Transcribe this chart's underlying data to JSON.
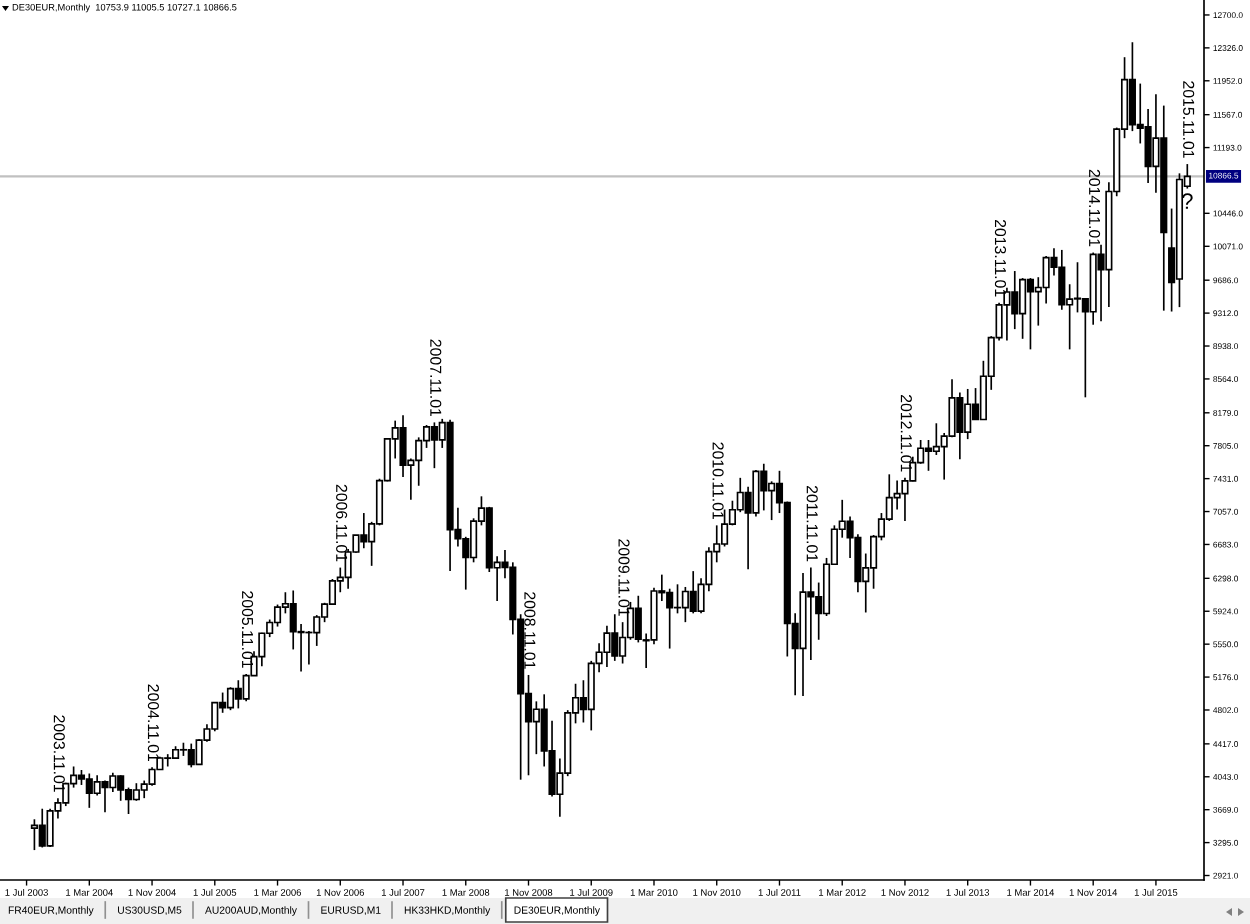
{
  "chart_data": {
    "type": "candlestick",
    "title": "DE30EUR,Monthly  10753.9 11005.5 10727.1 10866.5",
    "x": [
      "2003-08",
      "2003-09",
      "2003-10",
      "2003-11",
      "2003-12",
      "2004-01",
      "2004-02",
      "2004-03",
      "2004-04",
      "2004-05",
      "2004-06",
      "2004-07",
      "2004-08",
      "2004-09",
      "2004-10",
      "2004-11",
      "2004-12",
      "2005-01",
      "2005-02",
      "2005-03",
      "2005-04",
      "2005-05",
      "2005-06",
      "2005-07",
      "2005-08",
      "2005-09",
      "2005-10",
      "2005-11",
      "2005-12",
      "2006-01",
      "2006-02",
      "2006-03",
      "2006-04",
      "2006-05",
      "2006-06",
      "2006-07",
      "2006-08",
      "2006-09",
      "2006-10",
      "2006-11",
      "2006-12",
      "2007-01",
      "2007-02",
      "2007-03",
      "2007-04",
      "2007-05",
      "2007-06",
      "2007-07",
      "2007-08",
      "2007-09",
      "2007-10",
      "2007-11",
      "2007-12",
      "2008-01",
      "2008-02",
      "2008-03",
      "2008-04",
      "2008-05",
      "2008-06",
      "2008-07",
      "2008-08",
      "2008-09",
      "2008-10",
      "2008-11",
      "2008-12",
      "2009-01",
      "2009-02",
      "2009-03",
      "2009-04",
      "2009-05",
      "2009-06",
      "2009-07",
      "2009-08",
      "2009-09",
      "2009-10",
      "2009-11",
      "2009-12",
      "2010-01",
      "2010-02",
      "2010-03",
      "2010-04",
      "2010-05",
      "2010-06",
      "2010-07",
      "2010-08",
      "2010-09",
      "2010-10",
      "2010-11",
      "2010-12",
      "2011-01",
      "2011-02",
      "2011-03",
      "2011-04",
      "2011-05",
      "2011-06",
      "2011-07",
      "2011-08",
      "2011-09",
      "2011-10",
      "2011-11",
      "2011-12",
      "2012-01",
      "2012-02",
      "2012-03",
      "2012-04",
      "2012-05",
      "2012-06",
      "2012-07",
      "2012-08",
      "2012-09",
      "2012-10",
      "2012-11",
      "2012-12",
      "2013-01",
      "2013-02",
      "2013-03",
      "2013-04",
      "2013-05",
      "2013-06",
      "2013-07",
      "2013-08",
      "2013-09",
      "2013-10",
      "2013-11",
      "2013-12",
      "2014-01",
      "2014-02",
      "2014-03",
      "2014-04",
      "2014-05",
      "2014-06",
      "2014-07",
      "2014-08",
      "2014-09",
      "2014-10",
      "2014-11",
      "2014-12",
      "2015-01",
      "2015-02",
      "2015-03",
      "2015-04",
      "2015-05",
      "2015-06",
      "2015-07",
      "2015-08",
      "2015-09",
      "2015-10",
      "2015-11"
    ],
    "ohlc": [
      [
        3460,
        3560,
        3210,
        3490
      ],
      [
        3490,
        3680,
        3240,
        3257
      ],
      [
        3257,
        3680,
        3244,
        3655
      ],
      [
        3655,
        3800,
        3570,
        3746
      ],
      [
        3746,
        3975,
        3710,
        3965
      ],
      [
        3965,
        4160,
        3920,
        4058
      ],
      [
        4058,
        4120,
        3950,
        4018
      ],
      [
        4018,
        4080,
        3690,
        3856
      ],
      [
        3856,
        4060,
        3830,
        3985
      ],
      [
        3985,
        4000,
        3640,
        3921
      ],
      [
        3921,
        4090,
        3870,
        4052
      ],
      [
        4052,
        4060,
        3770,
        3895
      ],
      [
        3895,
        3920,
        3620,
        3785
      ],
      [
        3785,
        3970,
        3770,
        3893
      ],
      [
        3893,
        4000,
        3800,
        3960
      ],
      [
        3960,
        4150,
        3940,
        4126
      ],
      [
        4126,
        4270,
        4120,
        4256
      ],
      [
        4256,
        4300,
        4160,
        4254
      ],
      [
        4254,
        4390,
        4245,
        4350
      ],
      [
        4350,
        4430,
        4280,
        4349
      ],
      [
        4349,
        4420,
        4150,
        4184
      ],
      [
        4184,
        4470,
        4180,
        4460
      ],
      [
        4460,
        4640,
        4440,
        4586
      ],
      [
        4586,
        4890,
        4560,
        4886
      ],
      [
        4886,
        5000,
        4770,
        4829
      ],
      [
        4829,
        5060,
        4800,
        5044
      ],
      [
        5044,
        5140,
        4820,
        4929
      ],
      [
        4929,
        5210,
        4900,
        5193
      ],
      [
        5193,
        5470,
        5190,
        5408
      ],
      [
        5408,
        5680,
        5300,
        5674
      ],
      [
        5674,
        5830,
        5630,
        5796
      ],
      [
        5796,
        6000,
        5750,
        5970
      ],
      [
        5970,
        6140,
        5900,
        6009
      ],
      [
        6009,
        6160,
        5490,
        5692
      ],
      [
        5692,
        5780,
        5240,
        5683
      ],
      [
        5683,
        5700,
        5320,
        5682
      ],
      [
        5682,
        5880,
        5530,
        5859
      ],
      [
        5859,
        6020,
        5800,
        6004
      ],
      [
        6004,
        6290,
        6000,
        6269
      ],
      [
        6269,
        6420,
        6140,
        6309
      ],
      [
        6309,
        6630,
        6180,
        6597
      ],
      [
        6597,
        6790,
        6590,
        6789
      ],
      [
        6789,
        7040,
        6640,
        6716
      ],
      [
        6716,
        6940,
        6440,
        6917
      ],
      [
        6917,
        7430,
        6900,
        7409
      ],
      [
        7409,
        7890,
        7400,
        7883
      ],
      [
        7883,
        8090,
        7660,
        8007
      ],
      [
        8007,
        8150,
        7450,
        7584
      ],
      [
        7584,
        7660,
        7190,
        7638
      ],
      [
        7638,
        7900,
        7350,
        7862
      ],
      [
        7862,
        8040,
        7780,
        8019
      ],
      [
        8019,
        8070,
        7550,
        7871
      ],
      [
        7871,
        8110,
        7780,
        8067
      ],
      [
        8067,
        8100,
        6380,
        6851
      ],
      [
        6851,
        7100,
        6660,
        6748
      ],
      [
        6748,
        6770,
        6170,
        6535
      ],
      [
        6535,
        6980,
        6480,
        6949
      ],
      [
        6949,
        7230,
        6900,
        7096
      ],
      [
        7096,
        7110,
        6370,
        6418
      ],
      [
        6418,
        6550,
        6040,
        6479
      ],
      [
        6479,
        6620,
        6300,
        6422
      ],
      [
        6422,
        6480,
        5660,
        5831
      ],
      [
        5831,
        5890,
        4010,
        4988
      ],
      [
        4988,
        5200,
        4060,
        4669
      ],
      [
        4669,
        4900,
        4300,
        4810
      ],
      [
        4810,
        4980,
        4160,
        4338
      ],
      [
        4338,
        4680,
        3820,
        3844
      ],
      [
        3844,
        4250,
        3590,
        4085
      ],
      [
        4085,
        4800,
        4050,
        4770
      ],
      [
        4770,
        5100,
        4650,
        4941
      ],
      [
        4941,
        5140,
        4660,
        4809
      ],
      [
        4809,
        5360,
        4570,
        5332
      ],
      [
        5332,
        5560,
        5230,
        5458
      ],
      [
        5458,
        5760,
        5290,
        5675
      ],
      [
        5675,
        5890,
        5360,
        5415
      ],
      [
        5415,
        5800,
        5330,
        5626
      ],
      [
        5626,
        6030,
        5600,
        5957
      ],
      [
        5957,
        6100,
        5570,
        5608
      ],
      [
        5590,
        5670,
        5280,
        5598
      ],
      [
        5598,
        6190,
        5550,
        6154
      ],
      [
        6154,
        6340,
        6040,
        6136
      ],
      [
        6136,
        6180,
        5500,
        5965
      ],
      [
        5965,
        6230,
        5900,
        5966
      ],
      [
        5966,
        6200,
        5800,
        6148
      ],
      [
        6148,
        6380,
        5900,
        5925
      ],
      [
        5925,
        6300,
        5900,
        6229
      ],
      [
        6229,
        6650,
        6150,
        6601
      ],
      [
        6601,
        6900,
        6480,
        6688
      ],
      [
        6688,
        7080,
        6660,
        6914
      ],
      [
        6914,
        7180,
        6900,
        7077
      ],
      [
        7077,
        7440,
        7050,
        7273
      ],
      [
        7273,
        7340,
        6400,
        7041
      ],
      [
        7041,
        7530,
        7000,
        7514
      ],
      [
        7514,
        7600,
        7070,
        7294
      ],
      [
        7294,
        7400,
        6960,
        7376
      ],
      [
        7376,
        7520,
        7040,
        7159
      ],
      [
        7159,
        7170,
        5410,
        5785
      ],
      [
        5785,
        5900,
        4970,
        5502
      ],
      [
        5502,
        6360,
        4960,
        6141
      ],
      [
        6141,
        6420,
        5370,
        6089
      ],
      [
        6089,
        6250,
        5600,
        5898
      ],
      [
        5898,
        6530,
        5870,
        6458
      ],
      [
        6458,
        6900,
        6450,
        6856
      ],
      [
        6856,
        7190,
        6760,
        6947
      ],
      [
        6947,
        7000,
        6530,
        6761
      ],
      [
        6761,
        6800,
        6140,
        6264
      ],
      [
        6264,
        6580,
        5910,
        6416
      ],
      [
        6416,
        6790,
        6180,
        6772
      ],
      [
        6772,
        7040,
        6730,
        6971
      ],
      [
        6971,
        7480,
        6950,
        7216
      ],
      [
        7216,
        7410,
        7080,
        7260
      ],
      [
        7260,
        7440,
        6950,
        7405
      ],
      [
        7405,
        7680,
        7400,
        7612
      ],
      [
        7612,
        7870,
        7600,
        7776
      ],
      [
        7776,
        7870,
        7520,
        7742
      ],
      [
        7742,
        8060,
        7700,
        7795
      ],
      [
        7795,
        7950,
        7420,
        7914
      ],
      [
        7914,
        8560,
        7900,
        8349
      ],
      [
        8349,
        8410,
        7650,
        7959
      ],
      [
        7959,
        8450,
        7880,
        8276
      ],
      [
        8276,
        8460,
        8100,
        8103
      ],
      [
        8103,
        8770,
        8100,
        8594
      ],
      [
        8594,
        9050,
        8440,
        9033
      ],
      [
        9033,
        9430,
        9000,
        9406
      ],
      [
        9406,
        9600,
        9000,
        9552
      ],
      [
        9552,
        9790,
        9130,
        9306
      ],
      [
        9306,
        9710,
        9020,
        9692
      ],
      [
        9692,
        9710,
        8900,
        9556
      ],
      [
        9556,
        9720,
        9170,
        9603
      ],
      [
        9603,
        9960,
        9420,
        9943
      ],
      [
        9943,
        10050,
        9740,
        9833
      ],
      [
        9833,
        10030,
        9350,
        9407
      ],
      [
        9407,
        9640,
        8900,
        9470
      ],
      [
        9480,
        9890,
        9320,
        9474
      ],
      [
        9474,
        9480,
        8355,
        9327
      ],
      [
        9327,
        10000,
        9180,
        9980
      ],
      [
        9980,
        10090,
        9220,
        9806
      ],
      [
        9806,
        10800,
        9380,
        10694
      ],
      [
        10694,
        11420,
        10640,
        11402
      ],
      [
        11402,
        12220,
        11300,
        11966
      ],
      [
        11966,
        12390,
        11380,
        11454
      ],
      [
        11454,
        11920,
        11240,
        11414
      ],
      [
        11430,
        11630,
        10790,
        10980
      ],
      [
        10980,
        11800,
        10680,
        11300
      ],
      [
        11300,
        11670,
        9340,
        10230
      ],
      [
        10050,
        10500,
        9330,
        9660
      ],
      [
        9700,
        10900,
        9380,
        10830
      ],
      [
        10753.9,
        11005.5,
        10727.1,
        10866.5
      ]
    ],
    "color": "#000000",
    "colors": [
      "#ffffff",
      "#000000",
      "#ffffff",
      "#ffffff",
      "#ffffff",
      "#ffffff",
      "#000000",
      "#000000",
      "#ffffff",
      "#000000",
      "#ffffff",
      "#000000",
      "#000000",
      "#ffffff",
      "#ffffff",
      "#ffffff",
      "#ffffff",
      "#000000",
      "#ffffff",
      "#000000",
      "#000000",
      "#ffffff",
      "#ffffff",
      "#ffffff",
      "#000000",
      "#ffffff",
      "#000000",
      "#ffffff",
      "#ffffff",
      "#ffffff",
      "#ffffff",
      "#ffffff",
      "#ffffff",
      "#000000",
      "#000000",
      "#000000",
      "#ffffff",
      "#ffffff",
      "#ffffff",
      "#ffffff",
      "#ffffff",
      "#ffffff",
      "#000000",
      "#ffffff",
      "#ffffff",
      "#ffffff",
      "#ffffff",
      "#000000",
      "#ffffff",
      "#ffffff",
      "#ffffff",
      "#000000",
      "#ffffff",
      "#000000",
      "#000000",
      "#000000",
      "#ffffff",
      "#ffffff",
      "#000000",
      "#ffffff",
      "#000000",
      "#000000",
      "#000000",
      "#000000",
      "#ffffff",
      "#000000",
      "#000000",
      "#ffffff",
      "#ffffff",
      "#ffffff",
      "#000000",
      "#ffffff",
      "#ffffff",
      "#ffffff",
      "#000000",
      "#ffffff",
      "#ffffff",
      "#000000",
      "#ffffff",
      "#ffffff",
      "#000000",
      "#000000",
      "#ffffff",
      "#ffffff",
      "#000000",
      "#ffffff",
      "#ffffff",
      "#ffffff",
      "#ffffff",
      "#ffffff",
      "#ffffff",
      "#000000",
      "#ffffff",
      "#000000",
      "#ffffff",
      "#000000",
      "#000000",
      "#000000",
      "#ffffff",
      "#000000",
      "#000000",
      "#ffffff",
      "#ffffff",
      "#ffffff",
      "#000000",
      "#000000",
      "#ffffff",
      "#ffffff",
      "#ffffff",
      "#ffffff",
      "#ffffff",
      "#ffffff",
      "#ffffff",
      "#ffffff",
      "#000000",
      "#ffffff",
      "#ffffff",
      "#ffffff",
      "#000000",
      "#ffffff",
      "#000000",
      "#ffffff",
      "#ffffff",
      "#ffffff",
      "#ffffff",
      "#000000",
      "#ffffff",
      "#000000",
      "#ffffff",
      "#ffffff",
      "#000000",
      "#000000",
      "#ffffff",
      "#000000",
      "#000000",
      "#ffffff",
      "#000000",
      "#ffffff",
      "#ffffff",
      "#ffffff",
      "#000000",
      "#000000",
      "#000000",
      "#ffffff",
      "#000000",
      "#000000",
      "#ffffff",
      "#ffffff"
    ],
    "xlim": [
      "2003-03-20",
      "2016-01-05"
    ],
    "xticks": [
      {
        "value": "2003-07",
        "label": "1 Jul 2003"
      },
      {
        "value": "2004-03",
        "label": "1 Mar 2004"
      },
      {
        "value": "2004-11",
        "label": "1 Nov 2004"
      },
      {
        "value": "2005-07",
        "label": "1 Jul 2005"
      },
      {
        "value": "2006-03",
        "label": "1 Mar 2006"
      },
      {
        "value": "2006-11",
        "label": "1 Nov 2006"
      },
      {
        "value": "2007-07",
        "label": "1 Jul 2007"
      },
      {
        "value": "2008-03",
        "label": "1 Mar 2008"
      },
      {
        "value": "2008-11",
        "label": "1 Nov 2008"
      },
      {
        "value": "2009-07",
        "label": "1 Jul 2009"
      },
      {
        "value": "2010-03",
        "label": "1 Mar 2010"
      },
      {
        "value": "2010-11",
        "label": "1 Nov 2010"
      },
      {
        "value": "2011-07",
        "label": "1 Jul 2011"
      },
      {
        "value": "2012-03",
        "label": "1 Mar 2012"
      },
      {
        "value": "2012-11",
        "label": "1 Nov 2012"
      },
      {
        "value": "2013-07",
        "label": "1 Jul 2013"
      },
      {
        "value": "2014-03",
        "label": "1 Mar 2014"
      },
      {
        "value": "2014-11",
        "label": "1 Nov 2014"
      },
      {
        "value": "2015-07",
        "label": "1 Jul 2015"
      }
    ],
    "ylim": [
      2870,
      12870
    ],
    "yticks": [
      {
        "value": 12700,
        "label": "12700.0"
      },
      {
        "value": 12326,
        "label": "12326.0"
      },
      {
        "value": 11952,
        "label": "11952.0"
      },
      {
        "value": 11567,
        "label": "11567.0"
      },
      {
        "value": 11193,
        "label": "11193.0"
      },
      {
        "value": 10446,
        "label": "10446.0"
      },
      {
        "value": 10071,
        "label": "10071.0"
      },
      {
        "value": 9686,
        "label": "9686.0"
      },
      {
        "value": 9312,
        "label": "9312.0"
      },
      {
        "value": 8938,
        "label": "8938.0"
      },
      {
        "value": 8564,
        "label": "8564.0"
      },
      {
        "value": 8179,
        "label": "8179.0"
      },
      {
        "value": 7805,
        "label": "7805.0"
      },
      {
        "value": 7431,
        "label": "7431.0"
      },
      {
        "value": 7057,
        "label": "7057.0"
      },
      {
        "value": 6683,
        "label": "6683.0"
      },
      {
        "value": 6298,
        "label": "6298.0"
      },
      {
        "value": 5924,
        "label": "5924.0"
      },
      {
        "value": 5550,
        "label": "5550.0"
      },
      {
        "value": 5176,
        "label": "5176.0"
      },
      {
        "value": 4802,
        "label": "4802.0"
      },
      {
        "value": 4417,
        "label": "4417.0"
      },
      {
        "value": 4043,
        "label": "4043.0"
      },
      {
        "value": 3669,
        "label": "3669.0"
      },
      {
        "value": 3295,
        "label": "3295.0"
      },
      {
        "value": 2921,
        "label": "2921.0"
      }
    ],
    "ref_lines": [
      {
        "axis": "y",
        "value": 10866.5,
        "label": "10866.5",
        "color": "#c0c0c0"
      }
    ],
    "annotations": [
      {
        "text": "2003.11.01",
        "x": "2003-11",
        "y": 3800
      },
      {
        "text": "2004.11.01",
        "x": "2004-11",
        "y": 4150
      },
      {
        "text": "2005.11.01",
        "x": "2005-11",
        "y": 5210
      },
      {
        "text": "2006.11.01",
        "x": "2006-11",
        "y": 6420
      },
      {
        "text": "2007.11.01",
        "x": "2007-11",
        "y": 8070
      },
      {
        "text": "2008.11.01",
        "x": "2008-11",
        "y": 5200
      },
      {
        "text": "2009.11.01",
        "x": "2009-11",
        "y": 5800
      },
      {
        "text": "2010.11.01",
        "x": "2010-11",
        "y": 6900
      },
      {
        "text": "2011.11.01",
        "x": "2011-11",
        "y": 6420
      },
      {
        "text": "2012.11.01",
        "x": "2012-11",
        "y": 7440
      },
      {
        "text": "2013.11.01",
        "x": "2013-11",
        "y": 9430
      },
      {
        "text": "2014.11.01",
        "x": "2014-11",
        "y": 10000
      },
      {
        "text": "2015.11.01",
        "x": "2015-11",
        "y": 11005.5
      },
      {
        "text": "?",
        "x": "2015-11",
        "y": 10727.1
      },
      "FR40EUR,Monthly",
      "US30USD,M5",
      "AU200AUD,Monthly",
      "EURUSD,M1",
      "HK33HKD,Monthly",
      "DE30EUR,Monthly"
    ]
  }
}
